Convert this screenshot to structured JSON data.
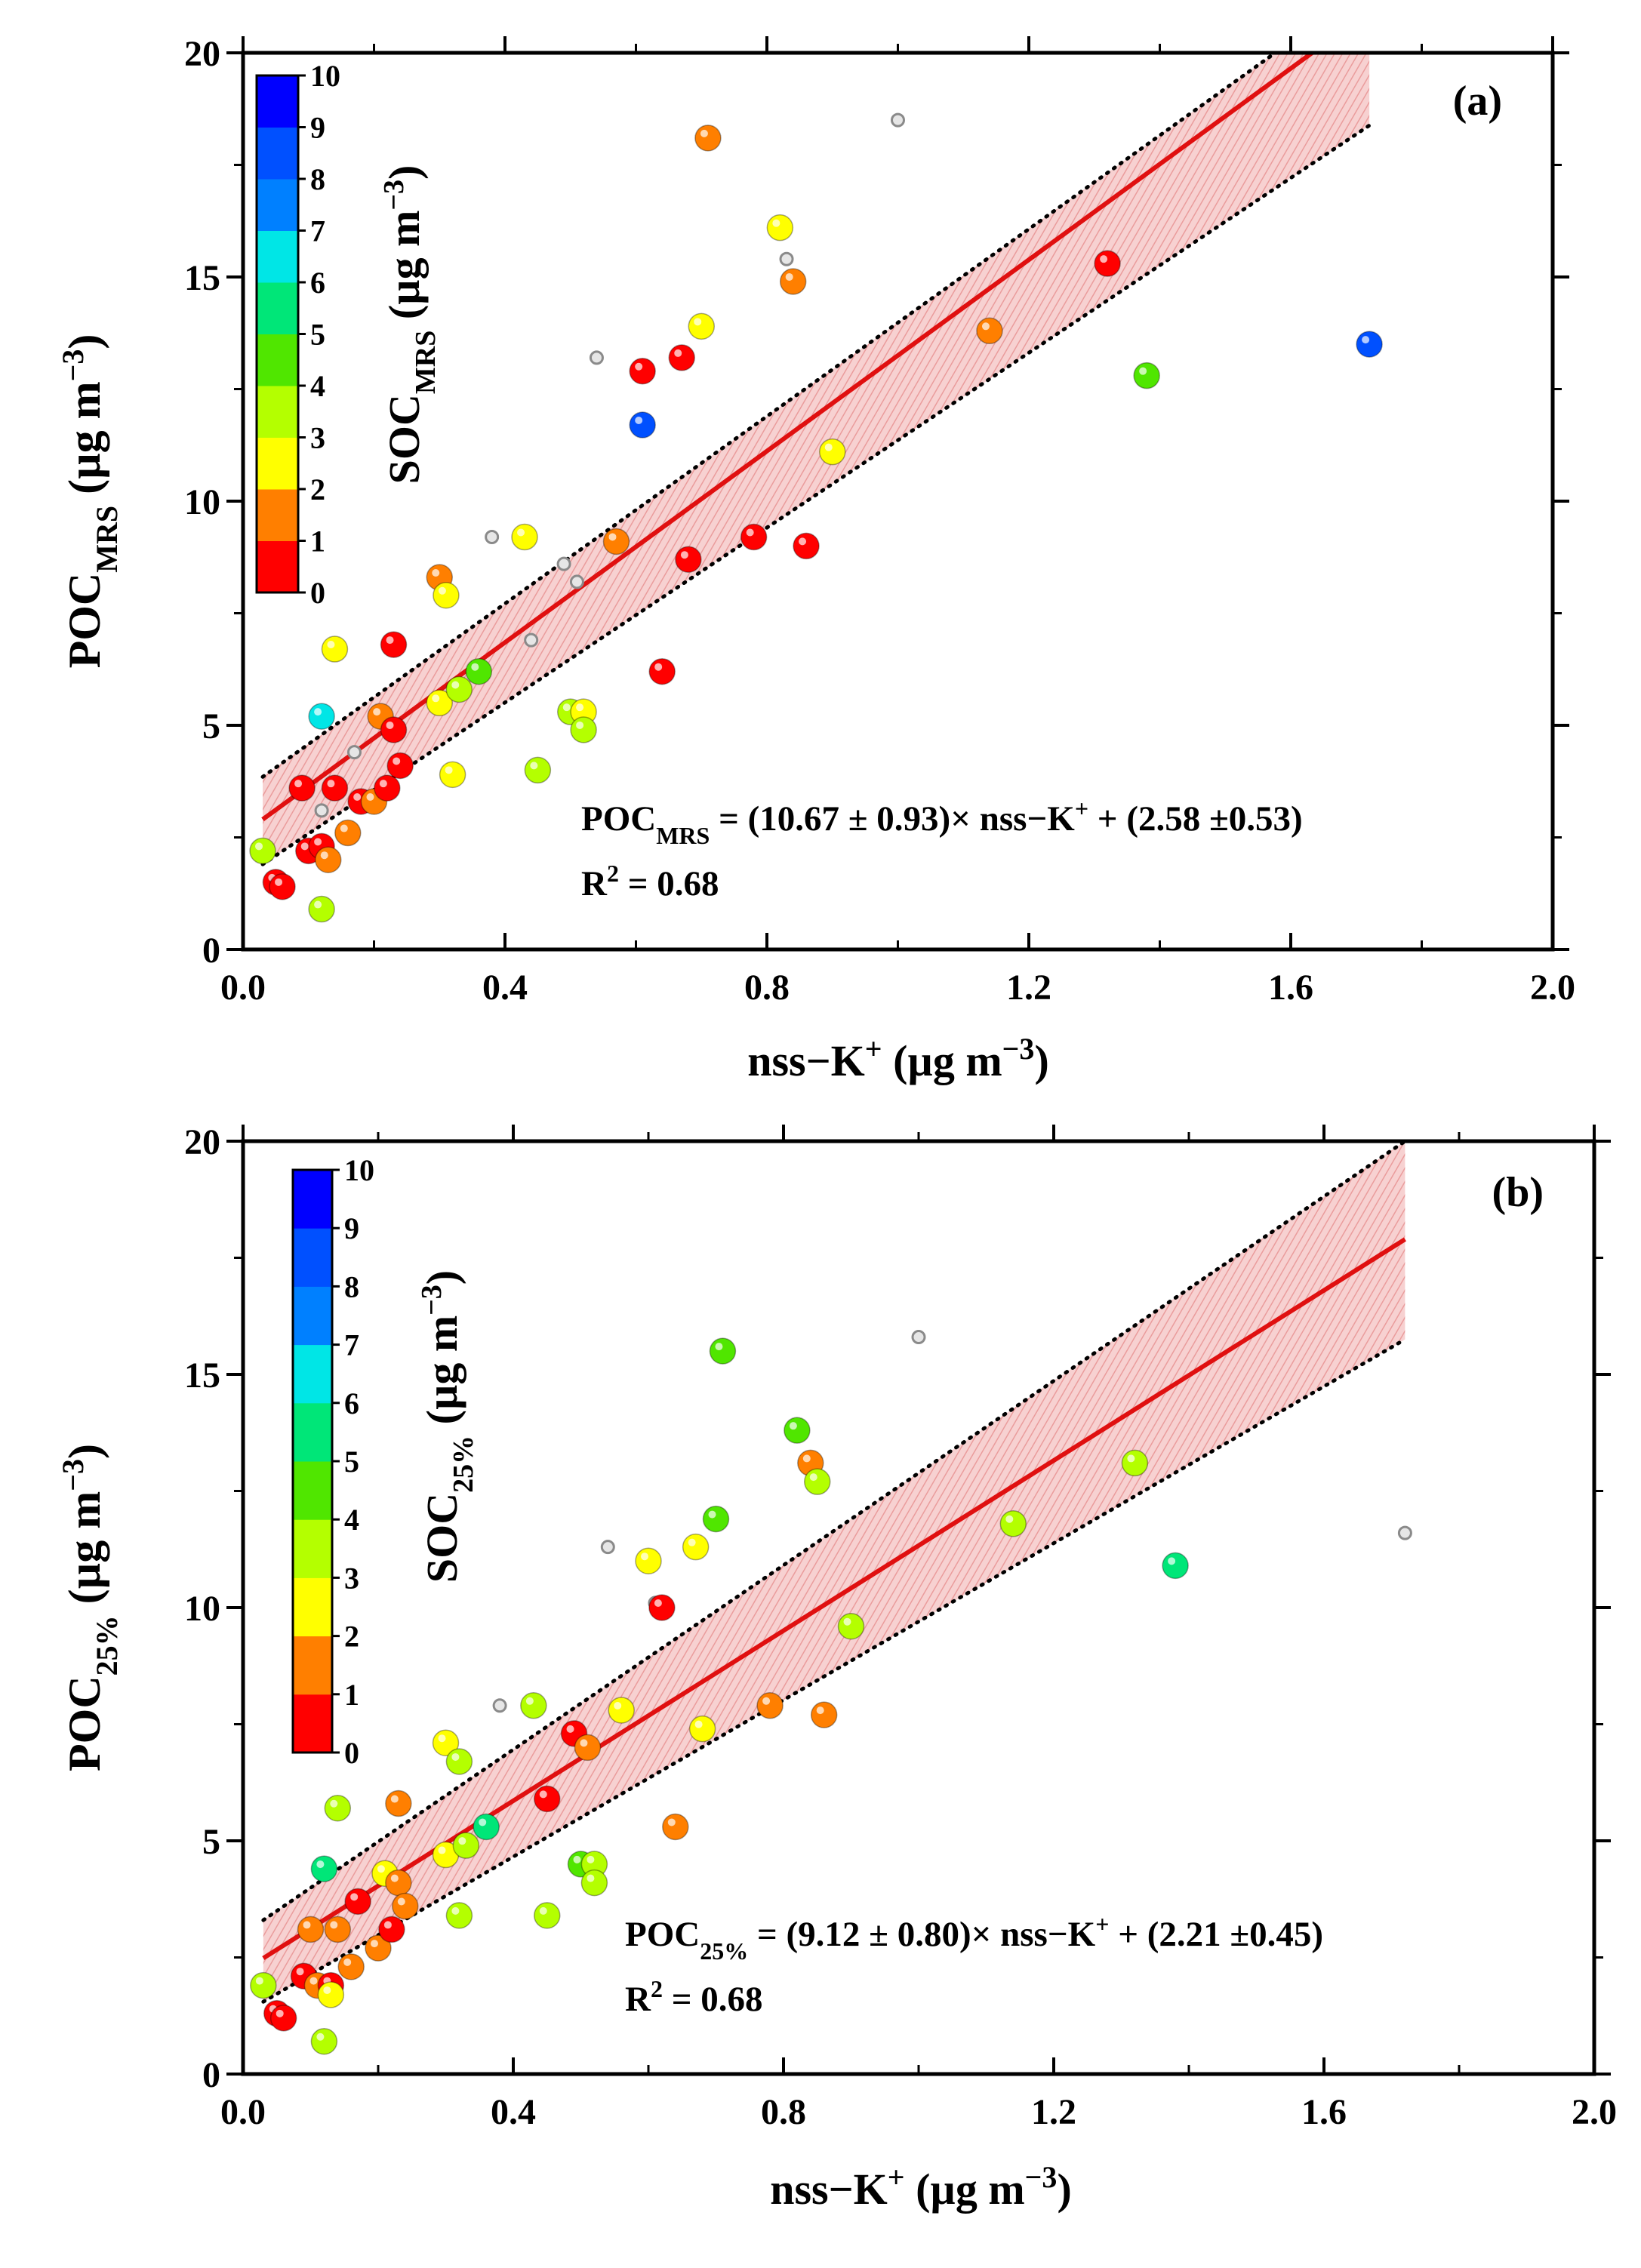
{
  "colors": {
    "fit_line": "#e01010",
    "band_fill": "#f6c9c9",
    "band_hatch": "#e68a8a",
    "axis": "#000000",
    "gray_point": "#b4b4b4",
    "colorscale": [
      "#ff0000",
      "#ff7f00",
      "#ffff00",
      "#b4ff00",
      "#50e600",
      "#00e678",
      "#00e6e6",
      "#0080ff",
      "#0050ff",
      "#0000ff"
    ]
  },
  "chart_data": [
    {
      "type": "scatter",
      "panel_label": "(a)",
      "xlabel": {
        "main": "nss−K",
        "sup": "+",
        "units_pre": " (µg m",
        "units_sup": "−3",
        "units_post": ")"
      },
      "ylabel": {
        "main": "POC",
        "sub": "MRS",
        "units_pre": " (µg m",
        "units_sup": "−3",
        "units_post": ")"
      },
      "colorbar_label": {
        "main": "SOC",
        "sub": "MRS",
        "units_pre": " (µg m",
        "units_sup": "−3",
        "units_post": ")"
      },
      "xlim": [
        0,
        2.0
      ],
      "ylim": [
        0,
        20
      ],
      "xticks": [
        0.0,
        0.4,
        0.8,
        1.2,
        1.6,
        2.0
      ],
      "xtick_labels": [
        "0.0",
        "0.4",
        "0.8",
        "1.2",
        "1.6",
        "2.0"
      ],
      "yticks": [
        0,
        5,
        10,
        15,
        20
      ],
      "ytick_labels": [
        "0",
        "5",
        "10",
        "15",
        "20"
      ],
      "colorbar_range": [
        0,
        10
      ],
      "colorbar_ticks": [
        "0",
        "1",
        "2",
        "3",
        "4",
        "5",
        "6",
        "7",
        "8",
        "9",
        "10"
      ],
      "fit": {
        "slope": 10.67,
        "intercept": 2.58,
        "x_range": [
          0.03,
          1.72
        ],
        "band_lower": [
          1.9,
          18.38
        ],
        "band_upper": [
          3.85,
          21.5
        ]
      },
      "equation": {
        "lhs": "POC",
        "lhs_sub": "MRS",
        "rhs_a": " = (10.67 ± 0.93)× nss−K",
        "rhs_sup": "+",
        "rhs_b": " + (2.58 ±0.53)"
      },
      "r2": {
        "lhs": "R",
        "sup": "2",
        "rhs": " = 0.68"
      },
      "gray_points": [
        [
          0.12,
          3.1
        ],
        [
          0.17,
          4.4
        ],
        [
          0.38,
          9.2
        ],
        [
          0.44,
          6.9
        ],
        [
          0.49,
          8.6
        ],
        [
          0.51,
          8.2
        ],
        [
          0.54,
          13.2
        ],
        [
          0.61,
          11.8
        ],
        [
          0.83,
          15.4
        ],
        [
          1.0,
          18.5
        ]
      ],
      "points": [
        {
          "x": 0.03,
          "y": 2.2,
          "c": 3.5
        },
        {
          "x": 0.05,
          "y": 1.5,
          "c": 0.5
        },
        {
          "x": 0.06,
          "y": 1.4,
          "c": 0.5
        },
        {
          "x": 0.09,
          "y": 3.6,
          "c": 0.5
        },
        {
          "x": 0.1,
          "y": 2.2,
          "c": 0.5
        },
        {
          "x": 0.12,
          "y": 2.3,
          "c": 0.5
        },
        {
          "x": 0.13,
          "y": 2.0,
          "c": 1.5
        },
        {
          "x": 0.12,
          "y": 0.9,
          "c": 3.5
        },
        {
          "x": 0.12,
          "y": 5.2,
          "c": 6.5
        },
        {
          "x": 0.14,
          "y": 6.7,
          "c": 2.5
        },
        {
          "x": 0.14,
          "y": 3.6,
          "c": 0.5
        },
        {
          "x": 0.16,
          "y": 2.6,
          "c": 1.5
        },
        {
          "x": 0.18,
          "y": 3.3,
          "c": 0.5
        },
        {
          "x": 0.2,
          "y": 3.3,
          "c": 1.5
        },
        {
          "x": 0.21,
          "y": 5.2,
          "c": 1.5
        },
        {
          "x": 0.22,
          "y": 3.6,
          "c": 0.5
        },
        {
          "x": 0.23,
          "y": 4.9,
          "c": 0.5
        },
        {
          "x": 0.23,
          "y": 6.8,
          "c": 0.5
        },
        {
          "x": 0.24,
          "y": 4.1,
          "c": 0.5
        },
        {
          "x": 0.3,
          "y": 8.3,
          "c": 1.5
        },
        {
          "x": 0.3,
          "y": 5.5,
          "c": 2.5
        },
        {
          "x": 0.31,
          "y": 7.9,
          "c": 2.5
        },
        {
          "x": 0.33,
          "y": 5.8,
          "c": 3.5
        },
        {
          "x": 0.32,
          "y": 3.9,
          "c": 2.5
        },
        {
          "x": 0.36,
          "y": 6.2,
          "c": 4.5
        },
        {
          "x": 0.43,
          "y": 9.2,
          "c": 2.5
        },
        {
          "x": 0.45,
          "y": 4.0,
          "c": 3.5
        },
        {
          "x": 0.5,
          "y": 5.3,
          "c": 3.5
        },
        {
          "x": 0.52,
          "y": 5.3,
          "c": 2.5
        },
        {
          "x": 0.52,
          "y": 4.9,
          "c": 3.5
        },
        {
          "x": 0.57,
          "y": 9.1,
          "c": 1.5
        },
        {
          "x": 0.61,
          "y": 12.9,
          "c": 0.5
        },
        {
          "x": 0.61,
          "y": 11.7,
          "c": 8.5
        },
        {
          "x": 0.64,
          "y": 6.2,
          "c": 0.5
        },
        {
          "x": 0.67,
          "y": 13.2,
          "c": 0.5
        },
        {
          "x": 0.68,
          "y": 8.7,
          "c": 0.5
        },
        {
          "x": 0.7,
          "y": 13.9,
          "c": 2.5
        },
        {
          "x": 0.71,
          "y": 18.1,
          "c": 1.5
        },
        {
          "x": 0.78,
          "y": 9.2,
          "c": 0.5
        },
        {
          "x": 0.82,
          "y": 16.1,
          "c": 2.5
        },
        {
          "x": 0.84,
          "y": 14.9,
          "c": 1.5
        },
        {
          "x": 0.86,
          "y": 9.0,
          "c": 0.5
        },
        {
          "x": 0.9,
          "y": 11.1,
          "c": 2.5
        },
        {
          "x": 1.14,
          "y": 13.8,
          "c": 1.5
        },
        {
          "x": 1.32,
          "y": 15.3,
          "c": 0.5
        },
        {
          "x": 1.38,
          "y": 12.8,
          "c": 4.5
        },
        {
          "x": 1.72,
          "y": 13.5,
          "c": 8.5
        }
      ]
    },
    {
      "type": "scatter",
      "panel_label": "(b)",
      "xlabel": {
        "main": "nss−K",
        "sup": "+",
        "units_pre": " (µg m",
        "units_sup": "−3",
        "units_post": ")"
      },
      "ylabel": {
        "main": "POC",
        "sub": "25%",
        "units_pre": " (µg m",
        "units_sup": "−3",
        "units_post": ")"
      },
      "colorbar_label": {
        "main": "SOC",
        "sub": "25%",
        "units_pre": " (µg m",
        "units_sup": "−3",
        "units_post": ")"
      },
      "xlim": [
        0,
        2.0
      ],
      "ylim": [
        0,
        20
      ],
      "xticks": [
        0.0,
        0.4,
        0.8,
        1.2,
        1.6,
        2.0
      ],
      "xtick_labels": [
        "0.0",
        "0.4",
        "0.8",
        "1.2",
        "1.6",
        "2.0"
      ],
      "yticks": [
        0,
        5,
        10,
        15,
        20
      ],
      "ytick_labels": [
        "0",
        "5",
        "10",
        "15",
        "20"
      ],
      "colorbar_range": [
        0,
        10
      ],
      "colorbar_ticks": [
        "0",
        "1",
        "2",
        "3",
        "4",
        "5",
        "6",
        "7",
        "8",
        "9",
        "10"
      ],
      "fit": {
        "slope": 9.12,
        "intercept": 2.21,
        "x_range": [
          0.03,
          1.72
        ],
        "band_lower": [
          1.55,
          15.75
        ],
        "band_upper": [
          3.3,
          20.0
        ]
      },
      "equation": {
        "lhs": "POC",
        "lhs_sub": "25%",
        "rhs_a": " = (9.12 ± 0.80)× nss−K",
        "rhs_sup": "+",
        "rhs_b": " + (2.21 ±0.45)"
      },
      "r2": {
        "lhs": "R",
        "sup": "2",
        "rhs": " = 0.68"
      },
      "gray_points": [
        [
          0.13,
          2.0
        ],
        [
          0.38,
          7.9
        ],
        [
          0.54,
          11.3
        ],
        [
          0.61,
          10.1
        ],
        [
          1.0,
          15.8
        ],
        [
          1.72,
          11.6
        ]
      ],
      "points": [
        {
          "x": 0.03,
          "y": 1.9,
          "c": 3.5
        },
        {
          "x": 0.05,
          "y": 1.3,
          "c": 0.5
        },
        {
          "x": 0.06,
          "y": 1.2,
          "c": 0.5
        },
        {
          "x": 0.09,
          "y": 2.1,
          "c": 0.5
        },
        {
          "x": 0.1,
          "y": 3.1,
          "c": 1.5
        },
        {
          "x": 0.11,
          "y": 1.9,
          "c": 1.5
        },
        {
          "x": 0.12,
          "y": 0.7,
          "c": 3.5
        },
        {
          "x": 0.12,
          "y": 4.4,
          "c": 5.5
        },
        {
          "x": 0.13,
          "y": 1.9,
          "c": 0.5
        },
        {
          "x": 0.13,
          "y": 1.7,
          "c": 2.5
        },
        {
          "x": 0.14,
          "y": 5.7,
          "c": 3.5
        },
        {
          "x": 0.14,
          "y": 3.1,
          "c": 1.5
        },
        {
          "x": 0.16,
          "y": 2.3,
          "c": 1.5
        },
        {
          "x": 0.17,
          "y": 3.7,
          "c": 0.5
        },
        {
          "x": 0.2,
          "y": 2.7,
          "c": 1.5
        },
        {
          "x": 0.21,
          "y": 4.3,
          "c": 2.5
        },
        {
          "x": 0.22,
          "y": 3.1,
          "c": 0.5
        },
        {
          "x": 0.23,
          "y": 4.1,
          "c": 1.5
        },
        {
          "x": 0.23,
          "y": 5.8,
          "c": 1.5
        },
        {
          "x": 0.24,
          "y": 3.6,
          "c": 1.5
        },
        {
          "x": 0.3,
          "y": 7.1,
          "c": 2.5
        },
        {
          "x": 0.3,
          "y": 4.7,
          "c": 2.5
        },
        {
          "x": 0.32,
          "y": 6.7,
          "c": 3.5
        },
        {
          "x": 0.33,
          "y": 4.9,
          "c": 3.5
        },
        {
          "x": 0.32,
          "y": 3.4,
          "c": 3.5
        },
        {
          "x": 0.36,
          "y": 5.3,
          "c": 5.5
        },
        {
          "x": 0.43,
          "y": 7.9,
          "c": 3.5
        },
        {
          "x": 0.45,
          "y": 5.9,
          "c": 0.5
        },
        {
          "x": 0.45,
          "y": 3.4,
          "c": 3.5
        },
        {
          "x": 0.49,
          "y": 7.3,
          "c": 0.5
        },
        {
          "x": 0.5,
          "y": 4.5,
          "c": 4.5
        },
        {
          "x": 0.51,
          "y": 7.0,
          "c": 1.5
        },
        {
          "x": 0.52,
          "y": 4.5,
          "c": 3.5
        },
        {
          "x": 0.52,
          "y": 4.1,
          "c": 3.5
        },
        {
          "x": 0.56,
          "y": 7.8,
          "c": 2.5
        },
        {
          "x": 0.6,
          "y": 11.0,
          "c": 2.5
        },
        {
          "x": 0.62,
          "y": 10.0,
          "c": 0.5
        },
        {
          "x": 0.64,
          "y": 5.3,
          "c": 1.5
        },
        {
          "x": 0.67,
          "y": 11.3,
          "c": 2.5
        },
        {
          "x": 0.68,
          "y": 7.4,
          "c": 2.5
        },
        {
          "x": 0.7,
          "y": 11.9,
          "c": 4.5
        },
        {
          "x": 0.71,
          "y": 15.5,
          "c": 4.5
        },
        {
          "x": 0.78,
          "y": 7.9,
          "c": 1.5
        },
        {
          "x": 0.82,
          "y": 13.8,
          "c": 4.5
        },
        {
          "x": 0.84,
          "y": 13.1,
          "c": 1.5
        },
        {
          "x": 0.85,
          "y": 12.7,
          "c": 3.5
        },
        {
          "x": 0.86,
          "y": 7.7,
          "c": 1.5
        },
        {
          "x": 0.9,
          "y": 9.6,
          "c": 3.5
        },
        {
          "x": 1.14,
          "y": 11.8,
          "c": 3.5
        },
        {
          "x": 1.32,
          "y": 13.1,
          "c": 3.5
        },
        {
          "x": 1.38,
          "y": 10.9,
          "c": 5.5
        }
      ]
    }
  ]
}
